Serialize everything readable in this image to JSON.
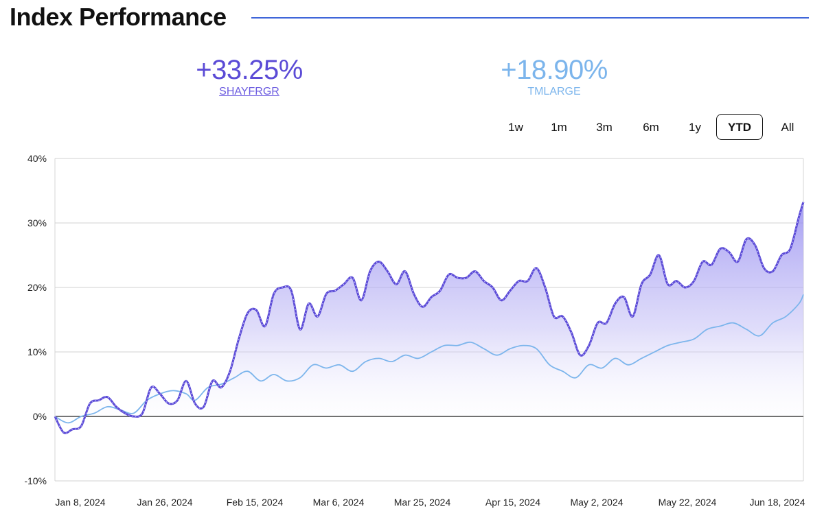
{
  "header": {
    "title": "Index Performance"
  },
  "stats": [
    {
      "value": "+33.25%",
      "label": "SHAYFRGR",
      "color": "#5b4bd6"
    },
    {
      "value": "+18.90%",
      "label": "TMLARGE",
      "color": "#7cb5ec"
    }
  ],
  "ranges": {
    "items": [
      "1w",
      "1m",
      "3m",
      "6m",
      "1y",
      "YTD",
      "All"
    ],
    "selected": "YTD"
  },
  "chart_data": {
    "type": "area",
    "x_tick_labels": [
      "Jan 8, 2024",
      "Jan 26, 2024",
      "Feb 15, 2024",
      "Mar 6, 2024",
      "Mar 25, 2024",
      "Apr 15, 2024",
      "May 2, 2024",
      "May 22, 2024",
      "Jun 18, 2024"
    ],
    "y_tick_labels": [
      "40%",
      "30%",
      "20%",
      "10%",
      "0%",
      "-10%"
    ],
    "ylim": [
      -10,
      40
    ],
    "xlim": [
      "2024-01-02",
      "2024-06-21"
    ],
    "grid": true,
    "series": [
      {
        "name": "SHAYFRGR",
        "color": "#5b4bd6",
        "fill": "gradient",
        "values": [
          [
            "2024-01-02",
            0.0
          ],
          [
            "2024-01-04",
            -2.5
          ],
          [
            "2024-01-06",
            -2.0
          ],
          [
            "2024-01-08",
            -1.5
          ],
          [
            "2024-01-10",
            2.0
          ],
          [
            "2024-01-12",
            2.5
          ],
          [
            "2024-01-14",
            3.0
          ],
          [
            "2024-01-16",
            1.5
          ],
          [
            "2024-01-18",
            0.5
          ],
          [
            "2024-01-20",
            0.0
          ],
          [
            "2024-01-22",
            0.5
          ],
          [
            "2024-01-24",
            4.5
          ],
          [
            "2024-01-26",
            3.5
          ],
          [
            "2024-01-28",
            2.0
          ],
          [
            "2024-01-30",
            2.5
          ],
          [
            "2024-02-01",
            5.5
          ],
          [
            "2024-02-03",
            2.0
          ],
          [
            "2024-02-05",
            1.5
          ],
          [
            "2024-02-07",
            5.5
          ],
          [
            "2024-02-09",
            4.5
          ],
          [
            "2024-02-11",
            7.0
          ],
          [
            "2024-02-13",
            12.0
          ],
          [
            "2024-02-15",
            16.0
          ],
          [
            "2024-02-17",
            16.5
          ],
          [
            "2024-02-19",
            14.0
          ],
          [
            "2024-02-21",
            19.0
          ],
          [
            "2024-02-23",
            20.0
          ],
          [
            "2024-02-25",
            19.5
          ],
          [
            "2024-02-27",
            13.5
          ],
          [
            "2024-02-29",
            17.5
          ],
          [
            "2024-03-02",
            15.5
          ],
          [
            "2024-03-04",
            19.0
          ],
          [
            "2024-03-06",
            19.5
          ],
          [
            "2024-03-08",
            20.5
          ],
          [
            "2024-03-10",
            21.5
          ],
          [
            "2024-03-12",
            18.0
          ],
          [
            "2024-03-14",
            22.5
          ],
          [
            "2024-03-16",
            24.0
          ],
          [
            "2024-03-18",
            22.5
          ],
          [
            "2024-03-20",
            20.5
          ],
          [
            "2024-03-22",
            22.5
          ],
          [
            "2024-03-24",
            19.0
          ],
          [
            "2024-03-26",
            17.0
          ],
          [
            "2024-03-28",
            18.5
          ],
          [
            "2024-03-30",
            19.5
          ],
          [
            "2024-04-01",
            22.0
          ],
          [
            "2024-04-03",
            21.5
          ],
          [
            "2024-04-05",
            21.5
          ],
          [
            "2024-04-07",
            22.5
          ],
          [
            "2024-04-09",
            21.0
          ],
          [
            "2024-04-11",
            20.0
          ],
          [
            "2024-04-13",
            18.0
          ],
          [
            "2024-04-15",
            19.5
          ],
          [
            "2024-04-17",
            21.0
          ],
          [
            "2024-04-19",
            21.0
          ],
          [
            "2024-04-21",
            23.0
          ],
          [
            "2024-04-23",
            20.0
          ],
          [
            "2024-04-25",
            15.5
          ],
          [
            "2024-04-27",
            15.5
          ],
          [
            "2024-04-29",
            13.0
          ],
          [
            "2024-05-01",
            9.5
          ],
          [
            "2024-05-03",
            11.0
          ],
          [
            "2024-05-05",
            14.5
          ],
          [
            "2024-05-07",
            14.5
          ],
          [
            "2024-05-09",
            17.5
          ],
          [
            "2024-05-11",
            18.5
          ],
          [
            "2024-05-13",
            15.5
          ],
          [
            "2024-05-15",
            20.5
          ],
          [
            "2024-05-17",
            22.0
          ],
          [
            "2024-05-19",
            25.0
          ],
          [
            "2024-05-21",
            20.5
          ],
          [
            "2024-05-23",
            21.0
          ],
          [
            "2024-05-25",
            20.0
          ],
          [
            "2024-05-27",
            21.0
          ],
          [
            "2024-05-29",
            24.0
          ],
          [
            "2024-05-31",
            23.5
          ],
          [
            "2024-06-02",
            26.0
          ],
          [
            "2024-06-04",
            25.5
          ],
          [
            "2024-06-06",
            24.0
          ],
          [
            "2024-06-08",
            27.5
          ],
          [
            "2024-06-10",
            26.5
          ],
          [
            "2024-06-12",
            23.0
          ],
          [
            "2024-06-14",
            22.5
          ],
          [
            "2024-06-16",
            25.0
          ],
          [
            "2024-06-18",
            26.0
          ],
          [
            "2024-06-20",
            31.0
          ],
          [
            "2024-06-21",
            33.25
          ]
        ]
      },
      {
        "name": "TMLARGE",
        "color": "#7cb5ec",
        "fill": "none",
        "values": [
          [
            "2024-01-02",
            0.0
          ],
          [
            "2024-01-05",
            -1.0
          ],
          [
            "2024-01-08",
            0.0
          ],
          [
            "2024-01-11",
            0.5
          ],
          [
            "2024-01-14",
            1.5
          ],
          [
            "2024-01-17",
            1.0
          ],
          [
            "2024-01-20",
            0.5
          ],
          [
            "2024-01-23",
            2.5
          ],
          [
            "2024-01-26",
            3.5
          ],
          [
            "2024-01-29",
            4.0
          ],
          [
            "2024-02-01",
            3.5
          ],
          [
            "2024-02-03",
            2.5
          ],
          [
            "2024-02-06",
            4.5
          ],
          [
            "2024-02-09",
            5.0
          ],
          [
            "2024-02-12",
            6.0
          ],
          [
            "2024-02-15",
            7.0
          ],
          [
            "2024-02-18",
            5.5
          ],
          [
            "2024-02-21",
            6.5
          ],
          [
            "2024-02-24",
            5.5
          ],
          [
            "2024-02-27",
            6.0
          ],
          [
            "2024-03-01",
            8.0
          ],
          [
            "2024-03-04",
            7.5
          ],
          [
            "2024-03-07",
            8.0
          ],
          [
            "2024-03-10",
            7.0
          ],
          [
            "2024-03-13",
            8.5
          ],
          [
            "2024-03-16",
            9.0
          ],
          [
            "2024-03-19",
            8.5
          ],
          [
            "2024-03-22",
            9.5
          ],
          [
            "2024-03-25",
            9.0
          ],
          [
            "2024-03-28",
            10.0
          ],
          [
            "2024-03-31",
            11.0
          ],
          [
            "2024-04-03",
            11.0
          ],
          [
            "2024-04-06",
            11.5
          ],
          [
            "2024-04-09",
            10.5
          ],
          [
            "2024-04-12",
            9.5
          ],
          [
            "2024-04-15",
            10.5
          ],
          [
            "2024-04-18",
            11.0
          ],
          [
            "2024-04-21",
            10.5
          ],
          [
            "2024-04-24",
            8.0
          ],
          [
            "2024-04-27",
            7.0
          ],
          [
            "2024-04-30",
            6.0
          ],
          [
            "2024-05-03",
            8.0
          ],
          [
            "2024-05-06",
            7.5
          ],
          [
            "2024-05-09",
            9.0
          ],
          [
            "2024-05-12",
            8.0
          ],
          [
            "2024-05-15",
            9.0
          ],
          [
            "2024-05-18",
            10.0
          ],
          [
            "2024-05-21",
            11.0
          ],
          [
            "2024-05-24",
            11.5
          ],
          [
            "2024-05-27",
            12.0
          ],
          [
            "2024-05-30",
            13.5
          ],
          [
            "2024-06-02",
            14.0
          ],
          [
            "2024-06-05",
            14.5
          ],
          [
            "2024-06-08",
            13.5
          ],
          [
            "2024-06-11",
            12.5
          ],
          [
            "2024-06-14",
            14.5
          ],
          [
            "2024-06-17",
            15.5
          ],
          [
            "2024-06-20",
            17.5
          ],
          [
            "2024-06-21",
            18.9
          ]
        ]
      }
    ]
  }
}
